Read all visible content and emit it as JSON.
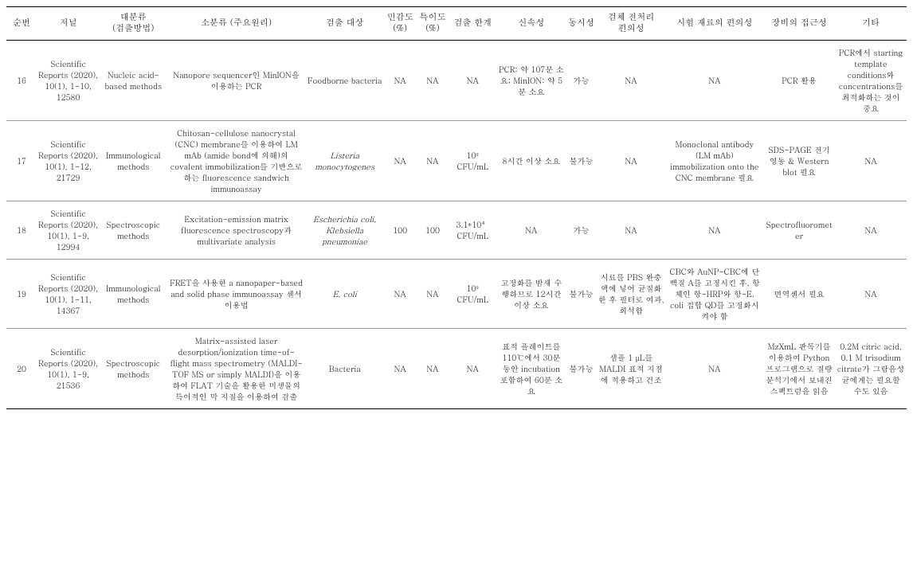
{
  "headers": {
    "no": "순번",
    "journal": "저널",
    "major": "대분류\n(검출방법)",
    "minor": "소분류\n(주요원리)",
    "target": "검출 대상",
    "sensitivity": "민감도\n(%)",
    "specificity": "특이도\n(%)",
    "limit": "검출\n한계",
    "speed": "신속성",
    "simultaneous": "동시성",
    "pretreatment": "검체\n전처리\n편의성",
    "reagent": "시험\n재료의 편의성",
    "equipment": "장비의\n접근성",
    "other": "기타"
  },
  "rows": [
    {
      "no": "16",
      "journal": "Scientific Reports (2020), 10(1), 1-10, 12580",
      "major": "Nucleic acid-based methods",
      "minor": "Nanopore sequencer인 MinION을 이용하는 PCR",
      "target": "Foodborne bacteria",
      "sensitivity": "NA",
      "specificity": "NA",
      "limit": "NA",
      "speed": "PCR: 약 107분 소요; MinION: 약 5분 소요",
      "simultaneous": "가능",
      "pretreatment": "NA",
      "reagent": "NA",
      "equipment": "PCR 활용",
      "other": "PCR에서 starting template conditions와 concentrations를 최적화하는 것이 중요"
    },
    {
      "no": "17",
      "journal": "Scientific Reports (2020), 10(1), 1-12, 21729",
      "major": "Immunological methods",
      "minor": "Chitosan-cellulose nanocrystal (CNC) membrane를 이용하여 LM mAb (amide bond에 의해)의 covalent immobilization를 기반으로 하는 fluorescence sandwich immunoassay",
      "target": "Listeria monocytogenes",
      "target_italic": true,
      "sensitivity": "NA",
      "specificity": "NA",
      "limit": "10² CFU/mL",
      "speed": "8시간 이상 소요",
      "simultaneous": "불가능",
      "pretreatment": "NA",
      "reagent": "Monoclonal antibody (LM mAb) immobilization onto the CNC membrane 필요",
      "equipment": "SDS-PAGE 전기영동 & Western blot 필요",
      "other": "NA"
    },
    {
      "no": "18",
      "journal": "Scientific Reports (2020), 10(1), 1-9, 12994",
      "major": "Spectroscopic methods",
      "minor": "Excitation-emission matrix fluorescence spectroscopy과 multivariate analysis",
      "target": "Escherichia coli, Klebsiella pneumoniae",
      "target_italic": true,
      "sensitivity": "100",
      "specificity": "100",
      "limit": "3.1*10⁴ CFU/mL",
      "speed": "NA",
      "simultaneous": "가능",
      "pretreatment": "NA",
      "reagent": "NA",
      "equipment": "Spectrofluorometer",
      "other": "NA"
    },
    {
      "no": "19",
      "journal": "Scientific Reports (2020), 10(1), 1-11, 14367",
      "major": "Immunological methods",
      "minor": "FRET을 사용한 a nanopaper-based and solid phase immunoassay 센서 이용법",
      "target": "E. coli",
      "target_italic": true,
      "sensitivity": "NA",
      "specificity": "NA",
      "limit": "10² CFU/mL",
      "speed": "고정화를 밤새 수행하므로 12시간 이상 소요",
      "simultaneous": "불가능",
      "pretreatment": "시료를 PBS 완충액에 넣어 균질화한 후 필터로 여과, 희석함",
      "reagent": "CBC와 AuNP-CBC에 단백질 A를 고정시킨 후, 항체인 항-HRP와 항-E. coli 접합 QD를 고정화시켜야 함",
      "equipment": "면역센서 필요",
      "other": "NA"
    },
    {
      "no": "20",
      "journal": "Scientific Reports (2020), 10(1), 1-9, 21536",
      "major": "Spectroscopic methods",
      "minor": "Matrix-assisted laser desorption/ionization time-of-flight mass spectrometry (MALDI-TOF MS or simply MALDI)을 이용하여 FLAT 기술을 활용한 미생물의 특이적인 막 지질을 이용하여 검출",
      "target": "Bacteria",
      "sensitivity": "NA",
      "specificity": "NA",
      "limit": "NA",
      "speed": "표적 플레이트를 110℃에서 30분 동안 incubation 포함하여 60분 소요",
      "simultaneous": "불가능",
      "pretreatment": "샘플 1 μL를 MALDI 표적 지점에 적용하고 건조",
      "reagent": "NA",
      "equipment": "MzXmL 판독기를 이용하여 Python 프로그램으로 질량 분석기에서 보내진 스펙트럼을 읽음",
      "other": "0.2M citric acid, 0.1 M trisodium citrate가 그람음성균에게는 필요할 수도 있음"
    }
  ]
}
